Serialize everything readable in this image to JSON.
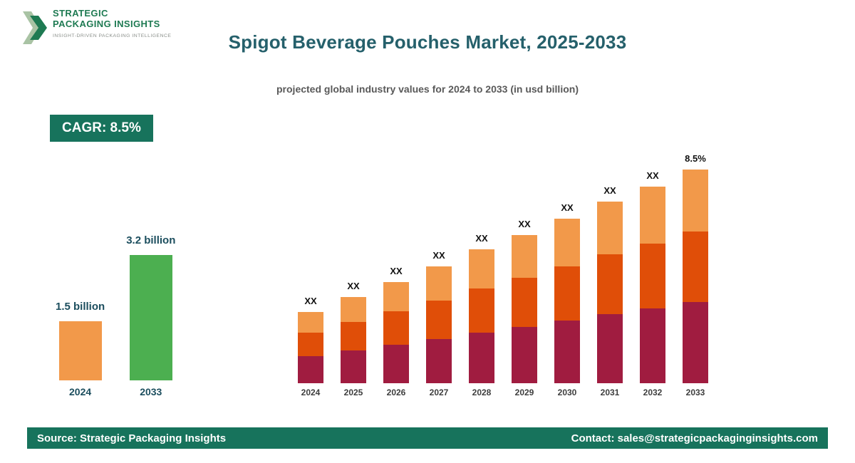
{
  "header": {
    "logo": {
      "line1": "STRATEGIC",
      "line2": "PACKAGING INSIGHTS",
      "tagline": "INSIGHT-DRIVEN PACKAGING INTELLIGENCE"
    },
    "title": "Spigot Beverage Pouches Market, 2025-2033",
    "subtitle": "projected global industry values for 2024 to 2033 (in usd billion)"
  },
  "cagr_badge": "CAGR: 8.5%",
  "chart_data": [
    {
      "type": "bar",
      "name": "growth-summary",
      "categories": [
        "2024",
        "2033"
      ],
      "values": [
        1.5,
        3.2
      ],
      "unit": "usd billion",
      "value_labels": [
        "1.5 billion",
        "3.2 billion"
      ],
      "colors": [
        "#F2994A",
        "#4CAF50"
      ],
      "legend_position": "none",
      "grid": false
    },
    {
      "type": "bar",
      "name": "yearly-projection",
      "stacked": true,
      "categories": [
        "2024",
        "2025",
        "2026",
        "2027",
        "2028",
        "2029",
        "2030",
        "2031",
        "2032",
        "2033"
      ],
      "bar_labels": [
        "XX",
        "XX",
        "XX",
        "XX",
        "XX",
        "XX",
        "XX",
        "XX",
        "XX",
        "8.5%"
      ],
      "series": [
        {
          "name": "segment-bottom",
          "color": "#A01C40",
          "values": [
            0.38,
            0.46,
            0.54,
            0.62,
            0.71,
            0.79,
            0.88,
            0.97,
            1.05,
            1.14
          ]
        },
        {
          "name": "segment-middle",
          "color": "#E04E08",
          "values": [
            0.33,
            0.4,
            0.47,
            0.54,
            0.62,
            0.69,
            0.76,
            0.84,
            0.91,
            0.99
          ]
        },
        {
          "name": "segment-top",
          "color": "#F2994A",
          "values": [
            0.29,
            0.35,
            0.41,
            0.48,
            0.55,
            0.6,
            0.67,
            0.74,
            0.8,
            0.87
          ]
        }
      ],
      "note": "bar data labels shown as XX placeholders in source; segment values are relative estimates from bar heights",
      "grid": false,
      "legend_position": "none"
    }
  ],
  "footer": {
    "source": "Source: Strategic Packaging Insights",
    "contact": "Contact: sales@strategicpackaginginsights.com"
  },
  "colors": {
    "brand_green": "#17735C",
    "title_teal": "#25606B",
    "subtitle_gray": "#595959",
    "label_dark": "#1C4E5E",
    "bar_crimson": "#A01C40",
    "bar_orange_dark": "#E04E08",
    "bar_orange_light": "#F2994A",
    "bar_green": "#4CAF50"
  }
}
